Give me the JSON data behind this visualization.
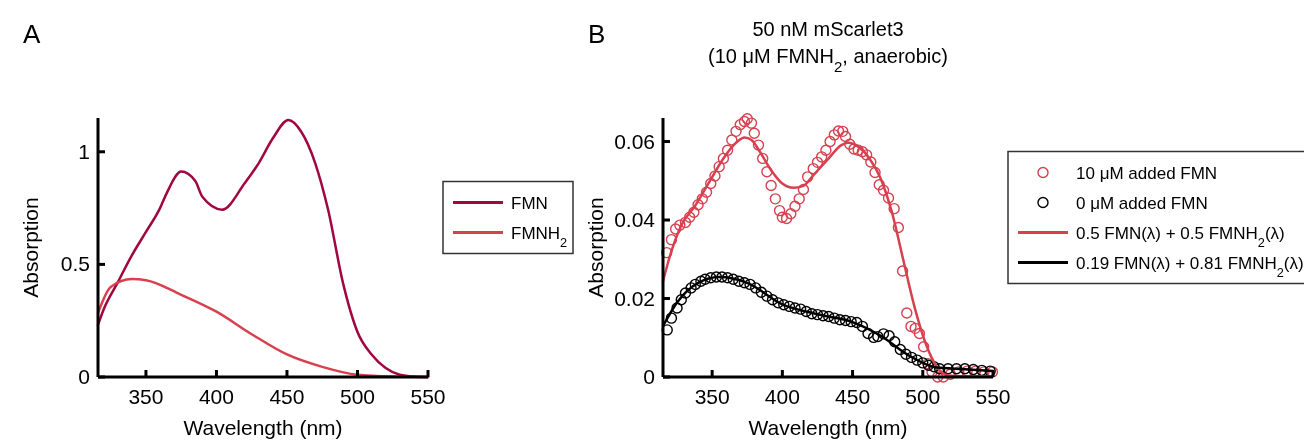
{
  "chart_data": [
    {
      "type": "line",
      "annotations": [
        "A"
      ],
      "xlabel": "Wavelength (nm)",
      "ylabel": "Absorption",
      "xlim": [
        316,
        550
      ],
      "ylim": [
        0,
        1.15
      ],
      "xticks": [
        350,
        400,
        450,
        500,
        550
      ],
      "yticks": [
        0,
        0.5,
        1
      ],
      "legend": "right",
      "grid": false,
      "line_style": "solid",
      "marker": "none",
      "series": [
        {
          "name": "FMN",
          "color": "#a0073f",
          "x": [
            316,
            320,
            330,
            340,
            350,
            360,
            365,
            375,
            385,
            390,
            404,
            420,
            430,
            440,
            451,
            460,
            470,
            479,
            490,
            500,
            510,
            520,
            530,
            540,
            550
          ],
          "values": [
            0.232,
            0.3,
            0.42,
            0.54,
            0.644,
            0.75,
            0.82,
            0.912,
            0.87,
            0.8,
            0.743,
            0.86,
            0.95,
            1.06,
            1.141,
            1.09,
            0.95,
            0.747,
            0.41,
            0.2,
            0.1,
            0.04,
            0.01,
            0.002,
            0
          ]
        },
        {
          "name": "FMNH$_{2}$",
          "color": "#d9404e",
          "x": [
            316,
            325,
            340,
            350,
            375,
            400,
            425,
            450,
            475,
            500,
            525,
            550
          ],
          "values": [
            0.284,
            0.4,
            0.435,
            0.43,
            0.365,
            0.29,
            0.19,
            0.1,
            0.045,
            0.01,
            0.002,
            0
          ]
        }
      ]
    },
    {
      "type": "line",
      "annotations": [
        "B"
      ],
      "title": "50 nM mScarlet3\n(10 μM FMNH$_{2}$, anaerobic)",
      "xlabel": "Wavelength (nm)",
      "ylabel": "Absorption",
      "xlim": [
        315,
        550
      ],
      "ylim": [
        0,
        0.066
      ],
      "xticks": [
        350,
        400,
        450,
        500,
        550
      ],
      "yticks": [
        0,
        0.02,
        0.04,
        0.06
      ],
      "legend": "right",
      "grid": false,
      "line_style": "solid",
      "series": [
        {
          "type": "scatter",
          "marker": "circle",
          "name": "10 μM added FMN",
          "color": "#d6404f",
          "x": [
            317.6,
            321,
            324,
            327,
            331,
            334,
            337,
            340,
            343,
            346,
            349,
            352,
            355,
            358,
            361,
            364,
            367,
            370,
            373,
            375,
            378,
            380,
            383,
            386,
            389,
            392,
            395,
            398,
            400,
            403,
            406,
            409,
            412,
            415,
            418,
            422,
            425,
            428,
            431,
            434,
            437,
            440,
            443,
            445,
            448,
            451,
            454,
            457,
            460,
            463,
            466,
            469,
            472,
            475.6,
            479.6,
            482.6,
            485.6,
            488.6,
            491.6,
            494.6,
            497.6,
            500.6,
            503.6,
            506.6,
            510.6,
            514.6,
            519.6,
            525.6,
            531.6,
            537.6,
            543.6,
            549.6
          ],
          "values": [
            0.0317,
            0.035,
            0.0377,
            0.0387,
            0.0394,
            0.0407,
            0.042,
            0.0439,
            0.0454,
            0.0471,
            0.0493,
            0.0512,
            0.0536,
            0.0557,
            0.0578,
            0.0604,
            0.0626,
            0.0643,
            0.0651,
            0.0658,
            0.0647,
            0.0621,
            0.0591,
            0.0557,
            0.0523,
            0.0488,
            0.0454,
            0.0424,
            0.0407,
            0.0404,
            0.0416,
            0.0435,
            0.0454,
            0.0478,
            0.051,
            0.0531,
            0.0547,
            0.0561,
            0.0578,
            0.06,
            0.0617,
            0.0627,
            0.0626,
            0.0613,
            0.0593,
            0.0581,
            0.0578,
            0.0574,
            0.0566,
            0.0548,
            0.0521,
            0.049,
            0.0476,
            0.0456,
            0.0429,
            0.0381,
            0.027,
            0.0163,
            0.0129,
            0.0124,
            0.0111,
            0.0077,
            0.0034,
            0.0013,
            0,
            0,
            0.0007,
            0.0013,
            0.0015,
            0.0015,
            0.0013,
            0.0013
          ]
        },
        {
          "type": "scatter",
          "marker": "circle",
          "name": "0 μM added FMN",
          "color": "#000000",
          "x": [
            318,
            321,
            325,
            328,
            331,
            335,
            338,
            342,
            345,
            349,
            353,
            357,
            361,
            365,
            369,
            373,
            377,
            381,
            385,
            389,
            393,
            397,
            401,
            405,
            409,
            413,
            417,
            421,
            425,
            429,
            433,
            437,
            441,
            445,
            449,
            453,
            457,
            461,
            465,
            468,
            472,
            476,
            480,
            484,
            488,
            492,
            496,
            500,
            504,
            508,
            512,
            518,
            524,
            530,
            536,
            542,
            548
          ],
          "values": [
            0.012,
            0.015,
            0.0176,
            0.0197,
            0.0214,
            0.0227,
            0.0236,
            0.0244,
            0.0249,
            0.0253,
            0.0255,
            0.0255,
            0.0253,
            0.0249,
            0.0244,
            0.024,
            0.0236,
            0.0227,
            0.0216,
            0.0206,
            0.0197,
            0.0189,
            0.0184,
            0.018,
            0.0176,
            0.0173,
            0.0167,
            0.0161,
            0.0159,
            0.0156,
            0.0154,
            0.015,
            0.0146,
            0.0144,
            0.0141,
            0.0139,
            0.0129,
            0.0111,
            0.0101,
            0.0103,
            0.011,
            0.0105,
            0.009,
            0.007,
            0.0058,
            0.005,
            0.0043,
            0.0036,
            0.003,
            0.0026,
            0.0021,
            0.0021,
            0.0021,
            0.0021,
            0.0019,
            0.0017,
            0.0015
          ]
        },
        {
          "type": "line",
          "name": "0.5 FMN(λ) + 0.5 FMNH$_{2}$(λ)",
          "color": "#d6404f",
          "x": [
            315,
            320,
            328,
            338,
            348,
            358,
            368,
            373,
            378,
            384,
            392,
            400,
            408,
            415,
            422,
            432,
            442,
            447,
            454,
            462,
            470,
            478,
            486,
            494,
            502,
            510,
            518,
            528,
            538,
            550
          ],
          "values": [
            0.0244,
            0.0309,
            0.0386,
            0.0437,
            0.0497,
            0.0557,
            0.06,
            0.061,
            0.0604,
            0.0574,
            0.0527,
            0.0493,
            0.0482,
            0.0487,
            0.0514,
            0.0553,
            0.0591,
            0.0597,
            0.0587,
            0.0557,
            0.0506,
            0.042,
            0.03,
            0.018,
            0.0086,
            0.0026,
            0.0004,
            0.0002,
            0.0002,
            0.0002
          ]
        },
        {
          "type": "line",
          "name": "0.19 FMN(λ) + 0.81 FMNH$_{2}$(λ)",
          "color": "#000000",
          "x": [
            315,
            325,
            340,
            355,
            375,
            400,
            425,
            450,
            470,
            490,
            510,
            530,
            550
          ],
          "values": [
            0.013,
            0.019,
            0.024,
            0.0255,
            0.024,
            0.0185,
            0.016,
            0.014,
            0.0105,
            0.0055,
            0.0024,
            0.002,
            0.0015
          ]
        }
      ]
    }
  ]
}
